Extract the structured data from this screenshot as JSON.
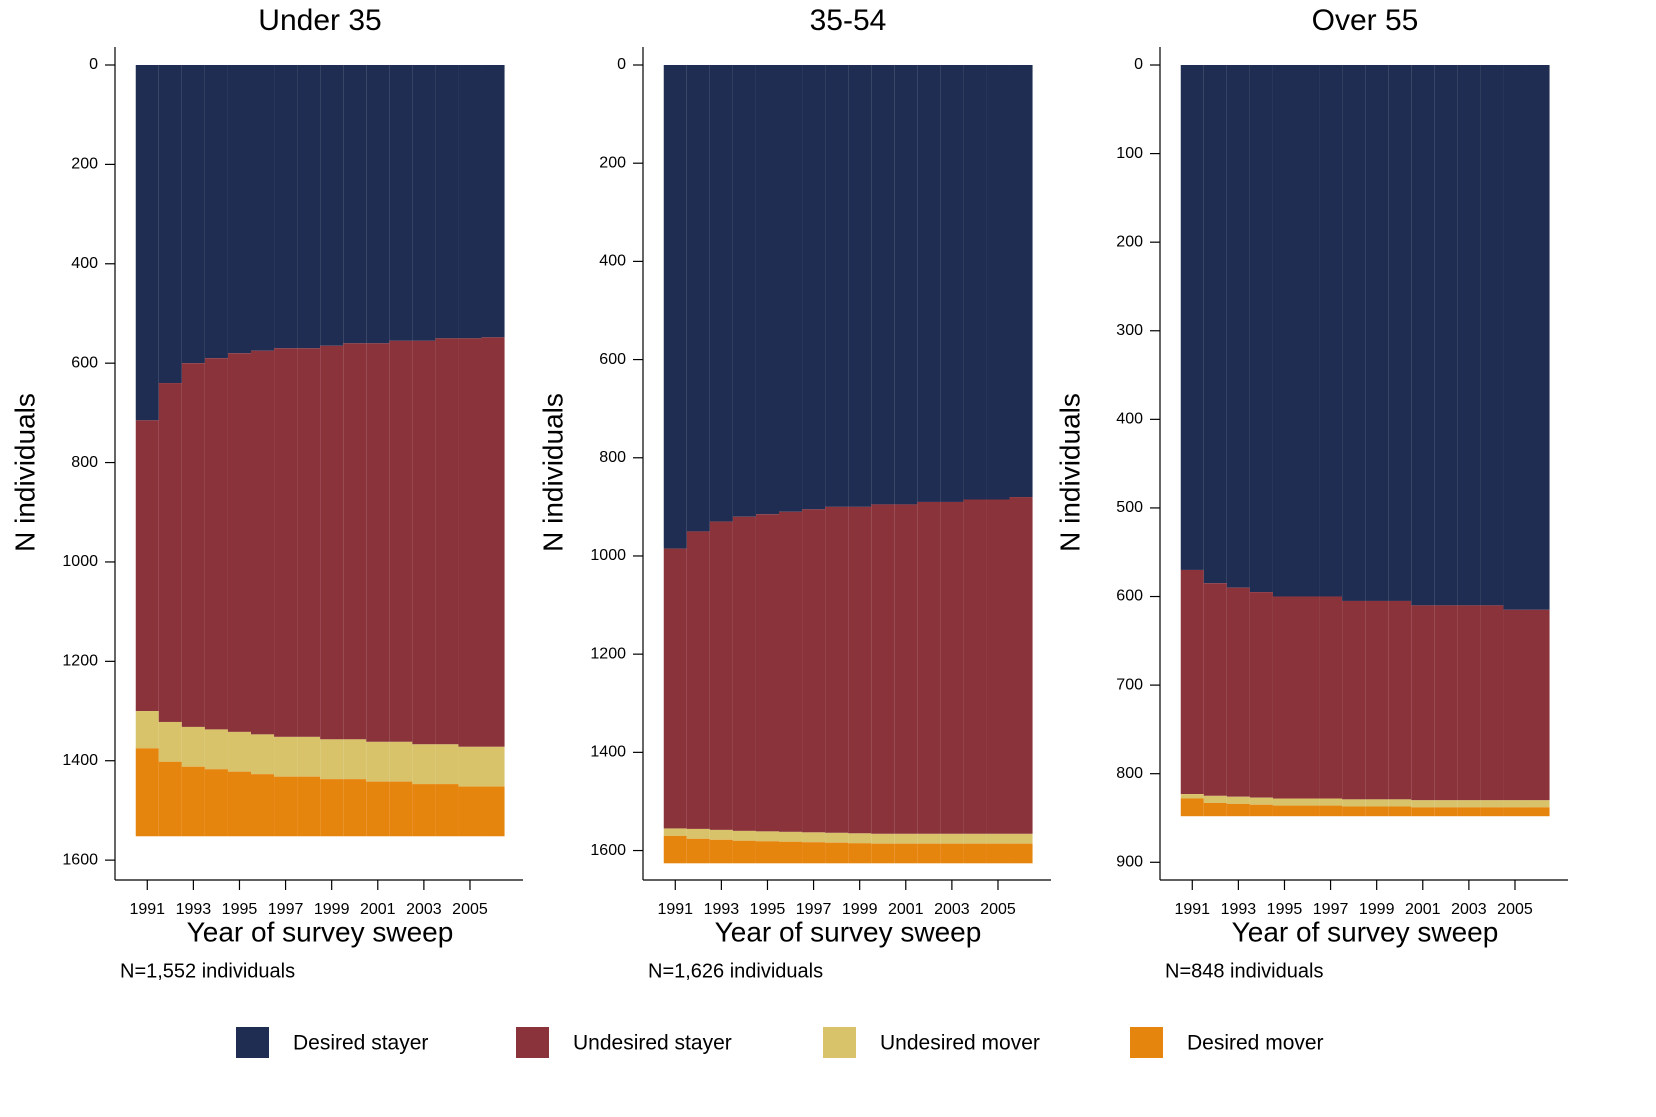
{
  "chart_data": [
    {
      "type": "stacked_bar",
      "title": "Under 35",
      "x_label": "Year of survey sweep",
      "y_label": "N individuals",
      "note": "N=1,552 individuals",
      "x": [
        1991,
        1992,
        1993,
        1994,
        1995,
        1996,
        1997,
        1998,
        1999,
        2000,
        2001,
        2002,
        2003,
        2004,
        2005,
        2006
      ],
      "xlim": [
        1989.6,
        2007.3
      ],
      "xticks": [
        1991,
        1993,
        1995,
        1997,
        1999,
        2001,
        2003,
        2005
      ],
      "ylim": [
        0,
        1640
      ],
      "yticks": [
        0,
        200,
        400,
        600,
        800,
        1000,
        1200,
        1400,
        1600
      ],
      "y_inverted": true,
      "series": [
        {
          "name": "Desired stayer",
          "color": "#1f2d52",
          "values": [
            715,
            640,
            600,
            590,
            580,
            575,
            570,
            570,
            565,
            560,
            560,
            555,
            555,
            550,
            550,
            548
          ]
        },
        {
          "name": "Undesired stayer",
          "color": "#8b333b",
          "values": [
            585,
            682,
            732,
            747,
            762,
            772,
            782,
            782,
            792,
            797,
            802,
            807,
            812,
            817,
            822,
            824
          ]
        },
        {
          "name": "Undesired mover",
          "color": "#d8c36a",
          "values": [
            75,
            80,
            80,
            80,
            80,
            80,
            80,
            80,
            80,
            80,
            80,
            80,
            80,
            80,
            80,
            80
          ]
        },
        {
          "name": "Desired mover",
          "color": "#e6850e",
          "values": [
            177,
            150,
            140,
            135,
            130,
            125,
            120,
            120,
            115,
            115,
            110,
            110,
            105,
            105,
            100,
            100
          ]
        }
      ]
    },
    {
      "type": "stacked_bar",
      "title": "35-54",
      "x_label": "Year of survey sweep",
      "y_label": "N individuals",
      "note": "N=1,626 individuals",
      "x": [
        1991,
        1992,
        1993,
        1994,
        1995,
        1996,
        1997,
        1998,
        1999,
        2000,
        2001,
        2002,
        2003,
        2004,
        2005,
        2006
      ],
      "xlim": [
        1989.6,
        2007.3
      ],
      "xticks": [
        1991,
        1993,
        1995,
        1997,
        1999,
        2001,
        2003,
        2005
      ],
      "ylim": [
        0,
        1660
      ],
      "yticks": [
        0,
        200,
        400,
        600,
        800,
        1000,
        1200,
        1400,
        1600
      ],
      "y_inverted": true,
      "series": [
        {
          "name": "Desired stayer",
          "color": "#1f2d52",
          "values": [
            985,
            950,
            930,
            920,
            915,
            910,
            905,
            900,
            900,
            895,
            895,
            890,
            890,
            885,
            885,
            880
          ]
        },
        {
          "name": "Undesired stayer",
          "color": "#8b333b",
          "values": [
            570,
            606,
            628,
            640,
            646,
            652,
            658,
            664,
            665,
            671,
            671,
            676,
            676,
            681,
            681,
            686
          ]
        },
        {
          "name": "Undesired mover",
          "color": "#d8c36a",
          "values": [
            15,
            20,
            20,
            20,
            20,
            20,
            20,
            20,
            20,
            20,
            20,
            20,
            20,
            20,
            20,
            20
          ]
        },
        {
          "name": "Desired mover",
          "color": "#e6850e",
          "values": [
            56,
            50,
            48,
            46,
            45,
            44,
            43,
            42,
            41,
            40,
            40,
            40,
            40,
            40,
            40,
            40
          ]
        }
      ]
    },
    {
      "type": "stacked_bar",
      "title": "Over 55",
      "x_label": "Year of survey sweep",
      "y_label": "N individuals",
      "note": "N=848 individuals",
      "x": [
        1991,
        1992,
        1993,
        1994,
        1995,
        1996,
        1997,
        1998,
        1999,
        2000,
        2001,
        2002,
        2003,
        2004,
        2005,
        2006
      ],
      "xlim": [
        1989.6,
        2007.3
      ],
      "xticks": [
        1991,
        1993,
        1995,
        1997,
        1999,
        2001,
        2003,
        2005
      ],
      "ylim": [
        0,
        920
      ],
      "yticks": [
        0,
        100,
        200,
        300,
        400,
        500,
        600,
        700,
        800,
        900
      ],
      "y_inverted": true,
      "series": [
        {
          "name": "Desired stayer",
          "color": "#1f2d52",
          "values": [
            570,
            585,
            590,
            595,
            600,
            600,
            600,
            605,
            605,
            605,
            610,
            610,
            610,
            610,
            615,
            615
          ]
        },
        {
          "name": "Undesired stayer",
          "color": "#8b333b",
          "values": [
            253,
            240,
            236,
            232,
            228,
            228,
            228,
            224,
            224,
            224,
            220,
            220,
            220,
            220,
            215,
            215
          ]
        },
        {
          "name": "Undesired mover",
          "color": "#d8c36a",
          "values": [
            5,
            8,
            8,
            8,
            8,
            8,
            8,
            8,
            8,
            8,
            8,
            8,
            8,
            8,
            8,
            8
          ]
        },
        {
          "name": "Desired mover",
          "color": "#e6850e",
          "values": [
            20,
            15,
            14,
            13,
            12,
            12,
            12,
            11,
            11,
            11,
            10,
            10,
            10,
            10,
            10,
            10
          ]
        }
      ]
    }
  ]
}
